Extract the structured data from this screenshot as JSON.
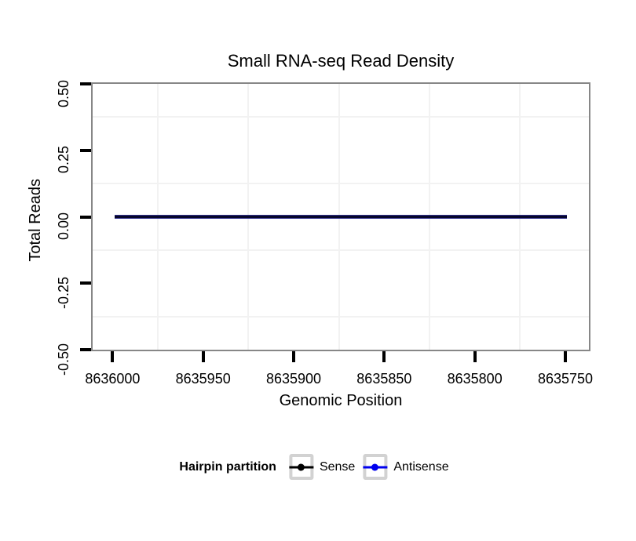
{
  "title": "Small RNA-seq Read Density",
  "x_axis": {
    "label": "Genomic Position",
    "tick_labels": [
      "8636000",
      "8635950",
      "8635900",
      "8635850",
      "8635800",
      "8635750"
    ]
  },
  "y_axis": {
    "label": "Total Reads",
    "tick_labels": [
      "0.50",
      "0.25",
      "0.00",
      "-0.25",
      "-0.50"
    ]
  },
  "legend": {
    "title": "Hairpin partition",
    "items": [
      {
        "label": "Sense",
        "color": "#000000"
      },
      {
        "label": "Antisense",
        "color": "#0000EE"
      }
    ]
  },
  "colors": {
    "panel_border": "#878787",
    "grid_minor": "#f2f2f2",
    "tick": "#000000",
    "line_core": "#06062a",
    "line_fringe": "#31318c",
    "legend_key_border": "#d2d2d2"
  },
  "chart_data": {
    "type": "line",
    "title": "Small RNA-seq Read Density",
    "xlabel": "Genomic Position",
    "ylabel": "Total Reads",
    "x_axis_reversed": true,
    "xlim": [
      8636011,
      8635737
    ],
    "x_ticks": [
      8636000,
      8635950,
      8635900,
      8635850,
      8635800,
      8635750
    ],
    "ylim": [
      -0.5,
      0.5
    ],
    "y_ticks": [
      0.5,
      0.25,
      0.0,
      -0.25,
      -0.5
    ],
    "grid": "minor gridlines only (midpoints between ticks), light gray; no major gridlines visible",
    "legend_position": "bottom",
    "series": [
      {
        "name": "Sense",
        "color": "#000000",
        "x": [
          8635999,
          8635749
        ],
        "y": [
          0,
          0
        ],
        "note": "flat line, constant 0 reads across plotted region"
      },
      {
        "name": "Antisense",
        "color": "#0000EE",
        "x": [
          8635999,
          8635749
        ],
        "y": [
          0,
          0
        ],
        "note": "flat line, constant 0 reads, overlaps Sense line"
      }
    ]
  }
}
